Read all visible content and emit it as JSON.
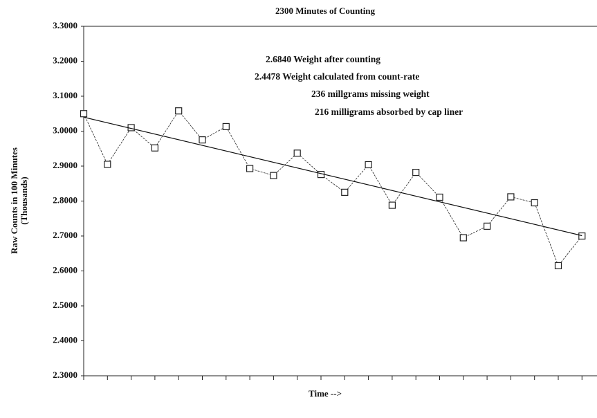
{
  "chart_data": {
    "type": "line",
    "subtitle": "2300 Minutes of Counting",
    "y_label": [
      "Raw Counts in 100 Minutes",
      "(Thousands)"
    ],
    "x_label": "Time -->",
    "annotations": [
      "2.6840 Weight after counting",
      "2.4478 Weight calculated from count-rate",
      "236 millgrams missing weight",
      "216 milligrams absorbed by cap liner"
    ],
    "categories": [
      null,
      null,
      null,
      null,
      null,
      null,
      null,
      null,
      null,
      null,
      null,
      null,
      null,
      null,
      null,
      null,
      null,
      null,
      null,
      null,
      null,
      null
    ],
    "series": [
      {
        "color": "#222222",
        "marker": "square",
        "values": [
          3.05,
          2.905,
          3.01,
          2.952,
          3.058,
          2.975,
          3.013,
          2.893,
          2.873,
          2.937,
          2.876,
          2.825,
          2.904,
          2.788,
          2.882,
          2.811,
          2.695,
          2.728,
          2.812,
          2.795,
          2.615,
          2.7
        ]
      }
    ],
    "trendline": {
      "color": "#111111",
      "values": [
        3.04,
        2.701
      ]
    },
    "ylim": [
      2.3,
      3.3
    ],
    "yticks": [
      {
        "value": 2.3,
        "label": "2.3000"
      },
      {
        "value": 2.4,
        "label": "2.4000"
      },
      {
        "value": 2.5,
        "label": "2.5000"
      },
      {
        "value": 2.6,
        "label": "2.6000"
      },
      {
        "value": 2.7,
        "label": "2.7000"
      },
      {
        "value": 2.8,
        "label": "2.8000"
      },
      {
        "value": 2.9,
        "label": "2.9000"
      },
      {
        "value": 3.0,
        "label": "3.0000"
      },
      {
        "value": 3.1,
        "label": "3.1000"
      },
      {
        "value": 3.2,
        "label": "3.2000"
      },
      {
        "value": 3.3,
        "label": "3.3000"
      }
    ],
    "grid": false
  }
}
